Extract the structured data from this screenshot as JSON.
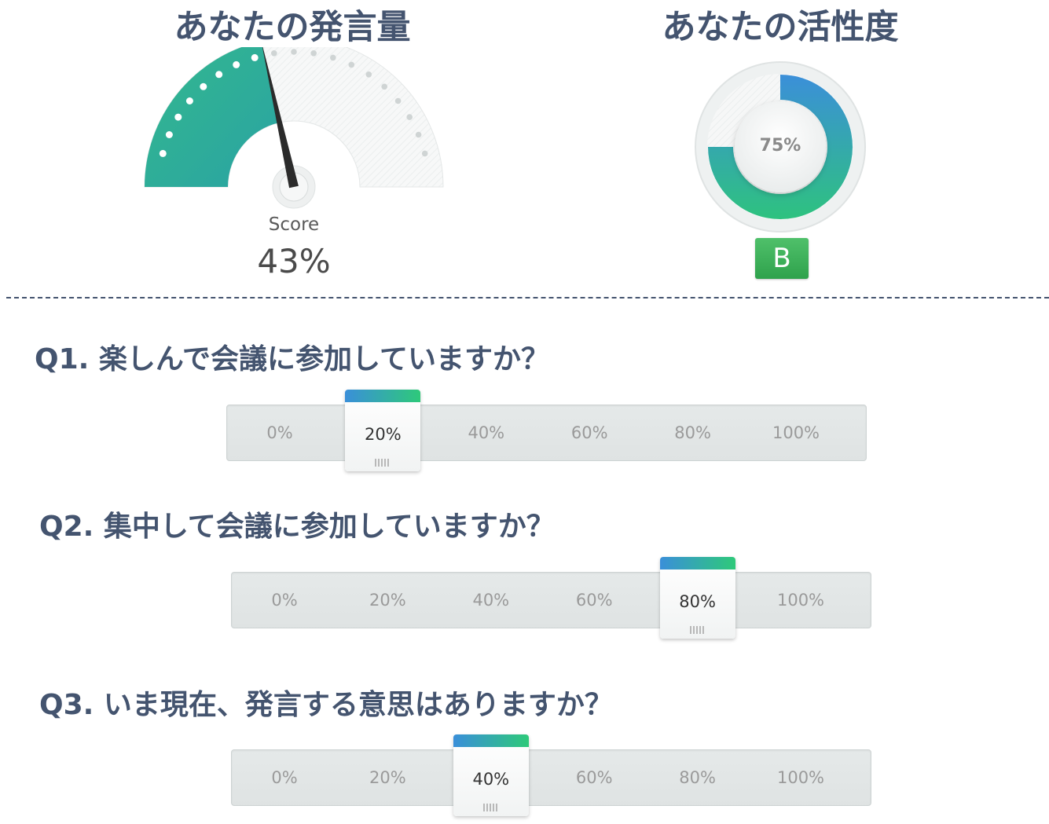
{
  "speech": {
    "title": "あなたの発言量",
    "caption": "Score",
    "value_text": "43%",
    "level": 0.43
  },
  "activity": {
    "title": "あなたの活性度",
    "value_text": "75%",
    "level": 0.75,
    "grade": "B"
  },
  "colors": {
    "heading": "#44546f",
    "gauge_fill_start": "#33b88e",
    "gauge_fill_end": "#2aa3a3",
    "ring_blue": "#3b8fd9",
    "ring_green": "#2ec27f",
    "badge_green": "#3cb158"
  },
  "icons": {
    "gauge_needle": "needle-icon",
    "slider_grip": "grip-icon"
  },
  "questions": [
    {
      "title": "Q1. 楽しんで会議に参加していますか？",
      "options": [
        "0%",
        "20%",
        "40%",
        "60%",
        "80%",
        "100%"
      ],
      "selected": "20%"
    },
    {
      "title": "Q2. 集中して会議に参加していますか？",
      "options": [
        "0%",
        "20%",
        "40%",
        "60%",
        "80%",
        "100%"
      ],
      "selected": "80%"
    },
    {
      "title": "Q3. いま現在、発言する意思はありますか？",
      "options": [
        "0%",
        "20%",
        "40%",
        "60%",
        "80%",
        "100%"
      ],
      "selected": "40%"
    }
  ]
}
